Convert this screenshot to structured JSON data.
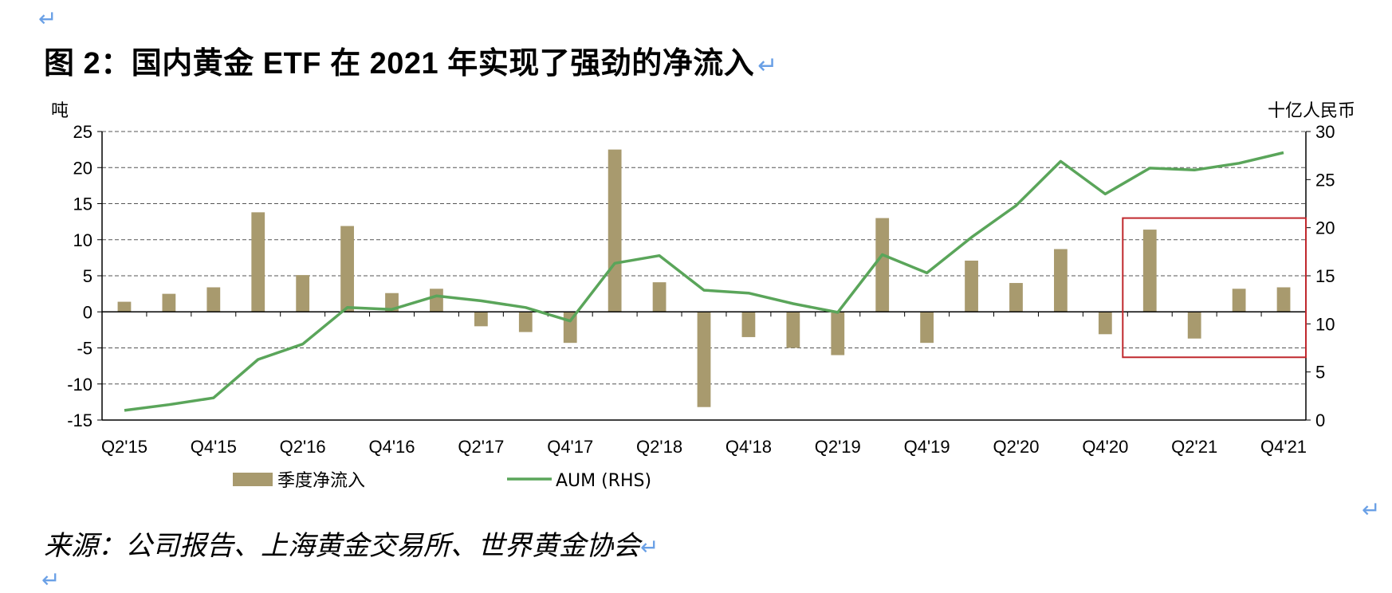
{
  "title": "图 2：国内黄金 ETF 在 2021 年实现了强劲的净流入",
  "return_mark": "↵",
  "source": "来源：公司报告、上海黄金交易所、世界黄金协会",
  "chart_data": {
    "type": "bar+line",
    "categories": [
      "Q2'15",
      "Q3'15",
      "Q4'15",
      "Q1'16",
      "Q2'16",
      "Q3'16",
      "Q4'16",
      "Q1'17",
      "Q2'17",
      "Q3'17",
      "Q4'17",
      "Q1'18",
      "Q2'18",
      "Q3'18",
      "Q4'18",
      "Q1'19",
      "Q2'19",
      "Q3'19",
      "Q4'19",
      "Q1'20",
      "Q2'20",
      "Q3'20",
      "Q4'20",
      "Q1'21",
      "Q2'21",
      "Q3'21",
      "Q4'21"
    ],
    "x_tick_labels": [
      "Q2'15",
      "Q4'15",
      "Q2'16",
      "Q4'16",
      "Q2'17",
      "Q4'17",
      "Q2'18",
      "Q4'18",
      "Q2'19",
      "Q4'19",
      "Q2'20",
      "Q4'20",
      "Q2'21",
      "Q4'21"
    ],
    "series": [
      {
        "name": "季度净流入",
        "type": "bar",
        "axis": "left",
        "color": "#a89a6e",
        "values": [
          1.4,
          2.5,
          3.4,
          13.8,
          5.1,
          11.9,
          2.6,
          3.2,
          -2.0,
          -2.8,
          -4.3,
          22.5,
          4.1,
          -13.2,
          -3.5,
          -5.0,
          -6.0,
          13.0,
          -4.3,
          7.1,
          4.0,
          8.7,
          -3.1,
          11.4,
          -3.7,
          3.2,
          3.4
        ]
      },
      {
        "name": "AUM (RHS)",
        "type": "line",
        "axis": "right",
        "color": "#5aa55a",
        "values": [
          1.0,
          1.6,
          2.3,
          6.3,
          7.9,
          11.7,
          11.5,
          12.9,
          12.4,
          11.7,
          10.3,
          16.3,
          17.1,
          13.5,
          13.2,
          12.1,
          11.2,
          17.2,
          15.3,
          19.0,
          22.3,
          26.9,
          23.5,
          26.2,
          26.0,
          26.7,
          27.8
        ]
      }
    ],
    "ylabel_left": "吨",
    "ylabel_right": "十亿人民币",
    "ylim_left": [
      -15,
      25
    ],
    "ylim_right": [
      0,
      30
    ],
    "yticks_left": [
      25,
      20,
      15,
      10,
      5,
      0,
      -5,
      -10,
      -15
    ],
    "yticks_right": [
      30,
      25,
      20,
      15,
      10,
      5,
      0
    ],
    "grid": "horizontal dashed",
    "legend": "bottom-center",
    "highlight_box": {
      "from_category": "Q1'21",
      "to_category": "Q4'21",
      "ymin_left": -6.3,
      "ymax_left": 13.0,
      "color": "#c0282d"
    }
  }
}
